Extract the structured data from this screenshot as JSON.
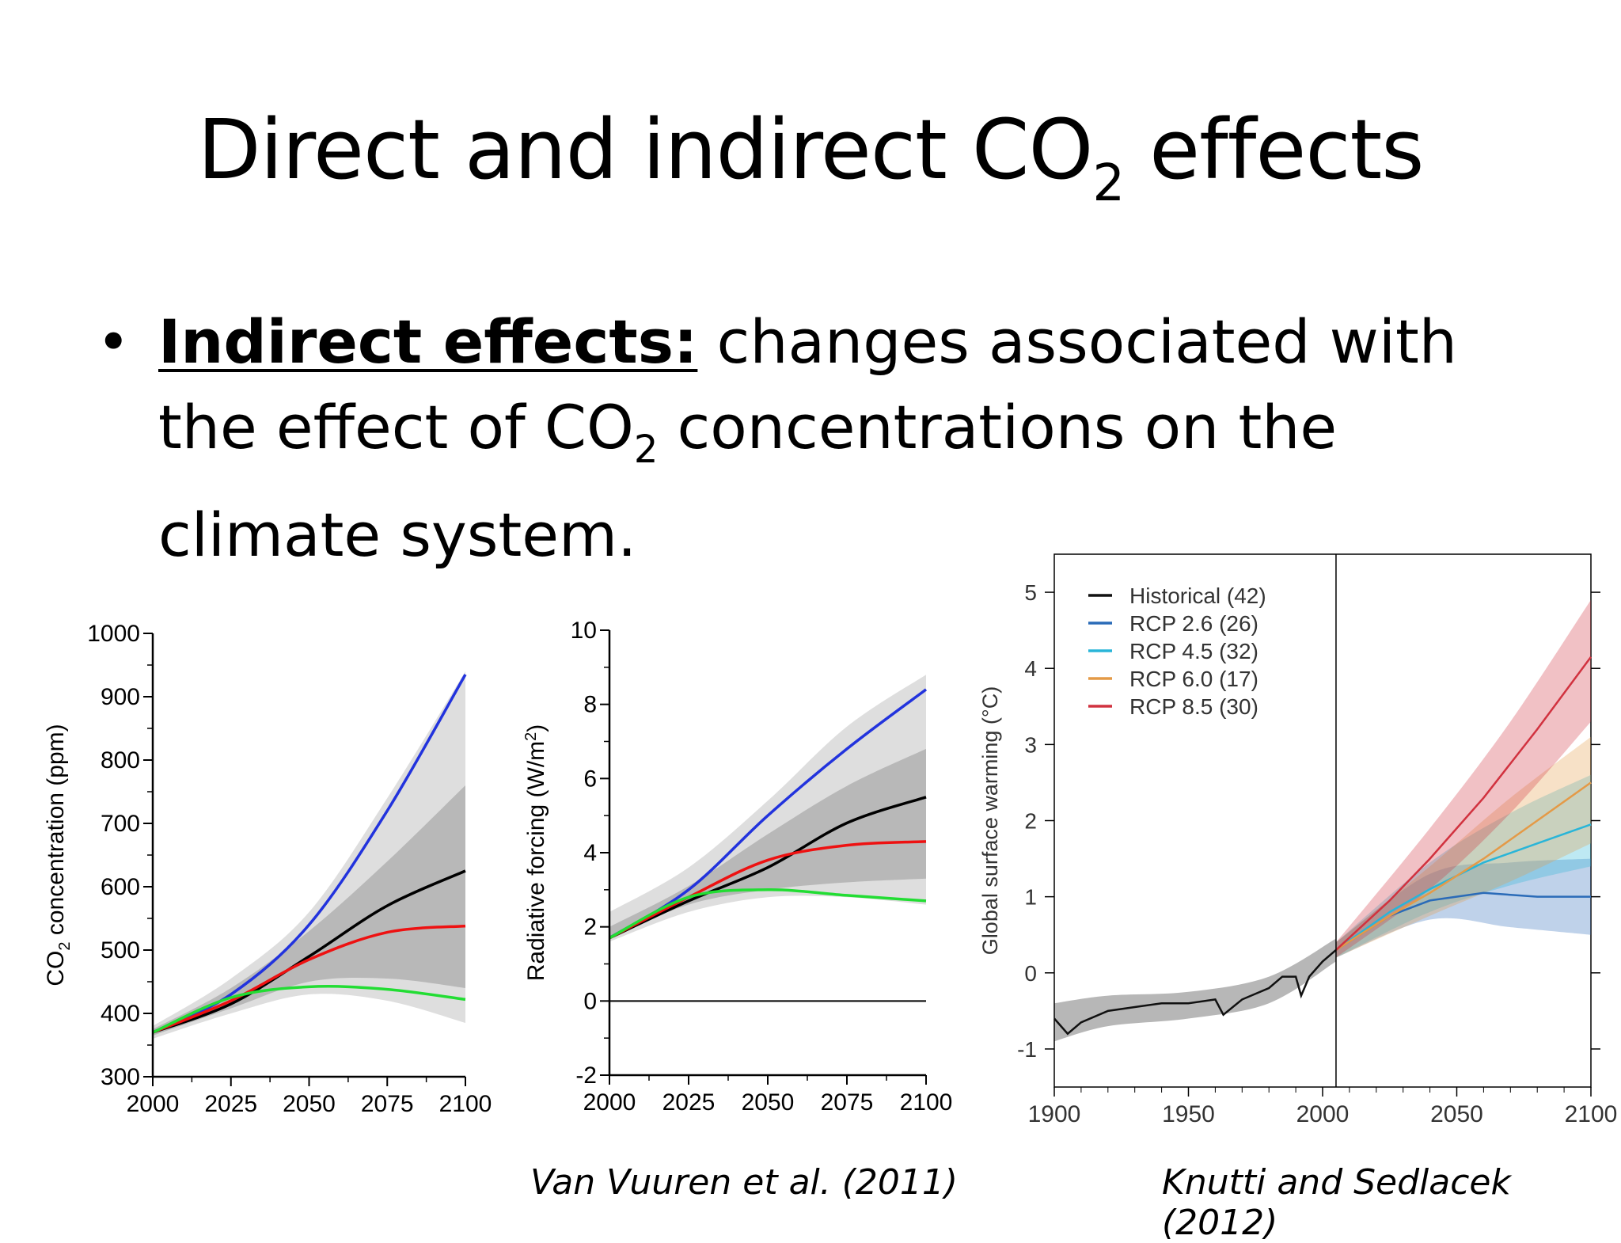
{
  "slide": {
    "title_main": "Direct and indirect CO",
    "title_sub": "2",
    "title_end": " effects",
    "bullet": {
      "label": "Indirect effects:",
      "text_1": " changes associated with the effect of CO",
      "sub": "2",
      "text_2": " concentrations on the climate system."
    },
    "citation_left": "Van Vuuren et al. (2011)",
    "citation_right": "Knutti and Sedlacek (2012)"
  },
  "chart_data": [
    {
      "type": "line",
      "ylabel_main": "CO",
      "ylabel_sub": "2",
      "ylabel_rest": " concentration (ppm)",
      "xlim": [
        2000,
        2100
      ],
      "ylim": [
        300,
        1000
      ],
      "xticks": [
        "2000",
        "2025",
        "2050",
        "2075",
        "2100"
      ],
      "yticks": [
        "300",
        "400",
        "500",
        "600",
        "700",
        "800",
        "900",
        "1000"
      ],
      "colors": {
        "blue": "#2233dd",
        "black": "#000000",
        "red": "#ee1111",
        "green": "#22dd33",
        "band_outer": "#dedede",
        "band_inner": "#b8b8b8"
      },
      "series": [
        {
          "color": "blue",
          "x": [
            2000,
            2025,
            2050,
            2075,
            2100
          ],
          "values": [
            370,
            430,
            540,
            720,
            935
          ]
        },
        {
          "color": "black",
          "x": [
            2000,
            2025,
            2050,
            2075,
            2100
          ],
          "values": [
            370,
            415,
            490,
            570,
            625
          ]
        },
        {
          "color": "red",
          "x": [
            2000,
            2025,
            2050,
            2075,
            2100
          ],
          "values": [
            370,
            420,
            485,
            528,
            538
          ]
        },
        {
          "color": "green",
          "x": [
            2000,
            2025,
            2050,
            2075,
            2100
          ],
          "values": [
            370,
            425,
            442,
            438,
            422
          ]
        }
      ],
      "bands": [
        {
          "color": "band_outer",
          "x": [
            2000,
            2025,
            2050,
            2075,
            2100
          ],
          "upper": [
            380,
            455,
            560,
            740,
            940
          ],
          "lower": [
            360,
            400,
            430,
            420,
            385
          ]
        },
        {
          "color": "band_inner",
          "x": [
            2000,
            2025,
            2050,
            2075,
            2100
          ],
          "upper": [
            375,
            440,
            530,
            640,
            760
          ],
          "lower": [
            365,
            408,
            450,
            455,
            440
          ]
        }
      ]
    },
    {
      "type": "line",
      "ylabel_main": "Radiative forcing (W/m",
      "ylabel_sup": "2",
      "ylabel_rest": ")",
      "xlim": [
        2000,
        2100
      ],
      "ylim": [
        -2,
        10
      ],
      "xticks": [
        "2000",
        "2025",
        "2050",
        "2075",
        "2100"
      ],
      "yticks": [
        "-2",
        "0",
        "2",
        "4",
        "6",
        "8",
        "10"
      ],
      "colors": {
        "blue": "#2233dd",
        "black": "#000000",
        "red": "#ee1111",
        "green": "#22dd33",
        "band_outer": "#dedede",
        "band_inner": "#b8b8b8"
      },
      "series": [
        {
          "color": "blue",
          "x": [
            2000,
            2025,
            2050,
            2075,
            2100
          ],
          "values": [
            1.7,
            3.0,
            5.0,
            6.8,
            8.4
          ]
        },
        {
          "color": "black",
          "x": [
            2000,
            2025,
            2050,
            2075,
            2100
          ],
          "values": [
            1.7,
            2.7,
            3.6,
            4.8,
            5.5
          ]
        },
        {
          "color": "red",
          "x": [
            2000,
            2025,
            2050,
            2075,
            2100
          ],
          "values": [
            1.7,
            2.8,
            3.8,
            4.2,
            4.3
          ]
        },
        {
          "color": "green",
          "x": [
            2000,
            2025,
            2050,
            2075,
            2100
          ],
          "values": [
            1.7,
            2.8,
            3.0,
            2.85,
            2.7
          ]
        }
      ],
      "bands": [
        {
          "color": "band_outer",
          "x": [
            2000,
            2025,
            2050,
            2075,
            2100
          ],
          "upper": [
            2.4,
            3.6,
            5.4,
            7.4,
            8.8
          ],
          "lower": [
            1.6,
            2.4,
            2.8,
            2.8,
            2.6
          ]
        },
        {
          "color": "band_inner",
          "x": [
            2000,
            2025,
            2050,
            2075,
            2100
          ],
          "upper": [
            2.0,
            3.1,
            4.5,
            5.8,
            6.8
          ],
          "lower": [
            1.7,
            2.6,
            3.0,
            3.2,
            3.3
          ]
        }
      ],
      "zero_line": 0
    },
    {
      "type": "line",
      "ylabel": "Global surface warming (°C)",
      "xlim": [
        1900,
        2100
      ],
      "ylim": [
        -1.5,
        5.5
      ],
      "xticks": [
        "1900",
        "1950",
        "2000",
        "2050",
        "2100"
      ],
      "yticks": [
        "-1",
        "0",
        "1",
        "2",
        "3",
        "4",
        "5"
      ],
      "divider_x": 2005,
      "legend_position": "top-left",
      "colors": {
        "Historical": "#111111",
        "RCP 2.6": "#2a6bb8",
        "RCP 4.5": "#29b5d8",
        "RCP 6.0": "#e49a47",
        "RCP 8.5": "#d1323f"
      },
      "series": [
        {
          "name": "Historical (42)",
          "key": "Historical",
          "x": [
            1900,
            1905,
            1910,
            1920,
            1930,
            1940,
            1950,
            1960,
            1963,
            1970,
            1980,
            1985,
            1990,
            1992,
            1995,
            2000,
            2005
          ],
          "values": [
            -0.6,
            -0.8,
            -0.65,
            -0.5,
            -0.45,
            -0.4,
            -0.4,
            -0.35,
            -0.55,
            -0.35,
            -0.2,
            -0.05,
            -0.05,
            -0.3,
            -0.05,
            0.15,
            0.3
          ]
        },
        {
          "name": "RCP 2.6 (26)",
          "key": "RCP 2.6",
          "x": [
            2005,
            2025,
            2040,
            2060,
            2080,
            2100
          ],
          "values": [
            0.3,
            0.75,
            0.95,
            1.05,
            1.0,
            1.0
          ]
        },
        {
          "name": "RCP 4.5 (32)",
          "key": "RCP 4.5",
          "x": [
            2005,
            2025,
            2040,
            2060,
            2080,
            2100
          ],
          "values": [
            0.3,
            0.8,
            1.1,
            1.45,
            1.7,
            1.95
          ]
        },
        {
          "name": "RCP 6.0 (17)",
          "key": "RCP 6.0",
          "x": [
            2005,
            2025,
            2040,
            2060,
            2080,
            2100
          ],
          "values": [
            0.3,
            0.75,
            1.05,
            1.5,
            2.0,
            2.5
          ]
        },
        {
          "name": "RCP 8.5 (30)",
          "key": "RCP 8.5",
          "x": [
            2005,
            2025,
            2040,
            2060,
            2080,
            2100
          ],
          "values": [
            0.3,
            0.95,
            1.5,
            2.3,
            3.2,
            4.15
          ]
        }
      ],
      "bands": [
        {
          "key": "Historical",
          "x": [
            1900,
            1920,
            1950,
            1980,
            2005
          ],
          "upper": [
            -0.4,
            -0.3,
            -0.25,
            -0.05,
            0.45
          ],
          "lower": [
            -0.9,
            -0.7,
            -0.6,
            -0.4,
            0.15
          ]
        },
        {
          "key": "RCP 2.6",
          "x": [
            2005,
            2040,
            2070,
            2100
          ],
          "upper": [
            0.4,
            1.3,
            1.45,
            1.5
          ],
          "lower": [
            0.2,
            0.7,
            0.6,
            0.5
          ]
        },
        {
          "key": "RCP 4.5",
          "x": [
            2005,
            2040,
            2070,
            2100
          ],
          "upper": [
            0.4,
            1.45,
            2.1,
            2.6
          ],
          "lower": [
            0.2,
            0.8,
            1.15,
            1.4
          ]
        },
        {
          "key": "RCP 6.0",
          "x": [
            2005,
            2040,
            2070,
            2100
          ],
          "upper": [
            0.4,
            1.4,
            2.3,
            3.1
          ],
          "lower": [
            0.2,
            0.75,
            1.2,
            1.7
          ]
        },
        {
          "key": "RCP 8.5",
          "x": [
            2005,
            2040,
            2070,
            2100
          ],
          "upper": [
            0.4,
            1.9,
            3.3,
            4.9
          ],
          "lower": [
            0.2,
            1.1,
            2.1,
            3.3
          ]
        }
      ]
    }
  ]
}
